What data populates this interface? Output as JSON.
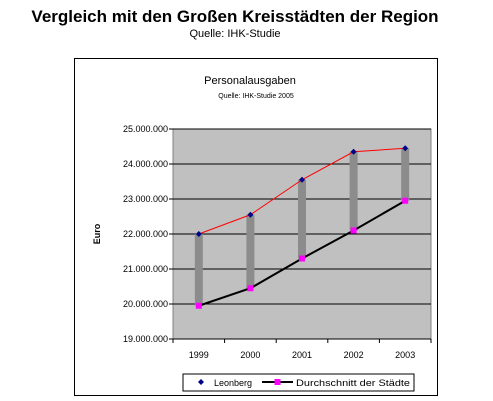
{
  "page": {
    "title": "Vergleich mit den Großen Kreisstädten der Region",
    "subtitle": "Quelle: IHK-Studie"
  },
  "chart_data": {
    "type": "line",
    "title": "Personalausgaben",
    "subtitle": "Quelle: IHK-Studie 2005",
    "xlabel": "",
    "ylabel": "Euro",
    "categories": [
      "1999",
      "2000",
      "2001",
      "2002",
      "2003"
    ],
    "ylim": [
      19000000,
      25000000
    ],
    "yticks": [
      19000000,
      20000000,
      21000000,
      22000000,
      23000000,
      24000000,
      25000000
    ],
    "ytick_labels": [
      "19.000.000",
      "20.000.000",
      "21.000.000",
      "22.000.000",
      "23.000.000",
      "24.000.000",
      "25.000.000"
    ],
    "grid": true,
    "legend_position": "bottom",
    "series": [
      {
        "name": "Leonberg",
        "values": [
          22000000,
          22550000,
          23550000,
          24350000,
          24450000
        ],
        "color": "#00008b",
        "line_color": "#ff0000",
        "marker": "diamond"
      },
      {
        "name": "Durchschnitt der Städte",
        "values": [
          19950000,
          20450000,
          21300000,
          22100000,
          22950000
        ],
        "color": "#000000",
        "marker_color": "#ff00ff",
        "marker": "square"
      }
    ],
    "colors": {
      "plot_background": "#c0c0c0",
      "range_bar": "#8c8c8c"
    }
  }
}
